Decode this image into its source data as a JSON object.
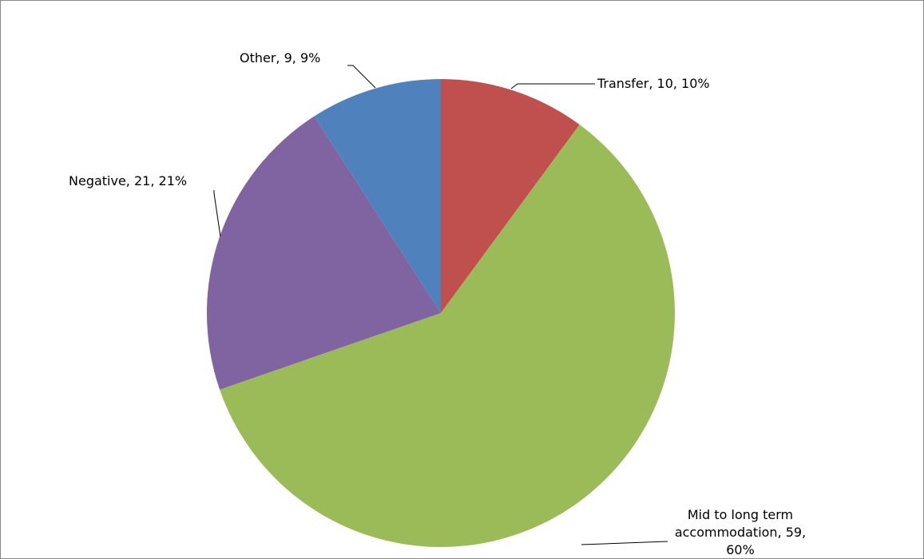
{
  "chart_data": {
    "type": "pie",
    "categories": [
      "Transfer",
      "Mid to long term accommodation",
      "Negative",
      "Other"
    ],
    "values": [
      10,
      59,
      21,
      9
    ],
    "value_labels": [
      "Transfer, 10, 10%",
      "Mid to long term accommodation, 59, 60%",
      "Negative, 21, 21%",
      "Other, 9, 9%"
    ],
    "colors": [
      "#c0504d",
      "#9bbb59",
      "#8064a2",
      "#4f81bd"
    ]
  }
}
